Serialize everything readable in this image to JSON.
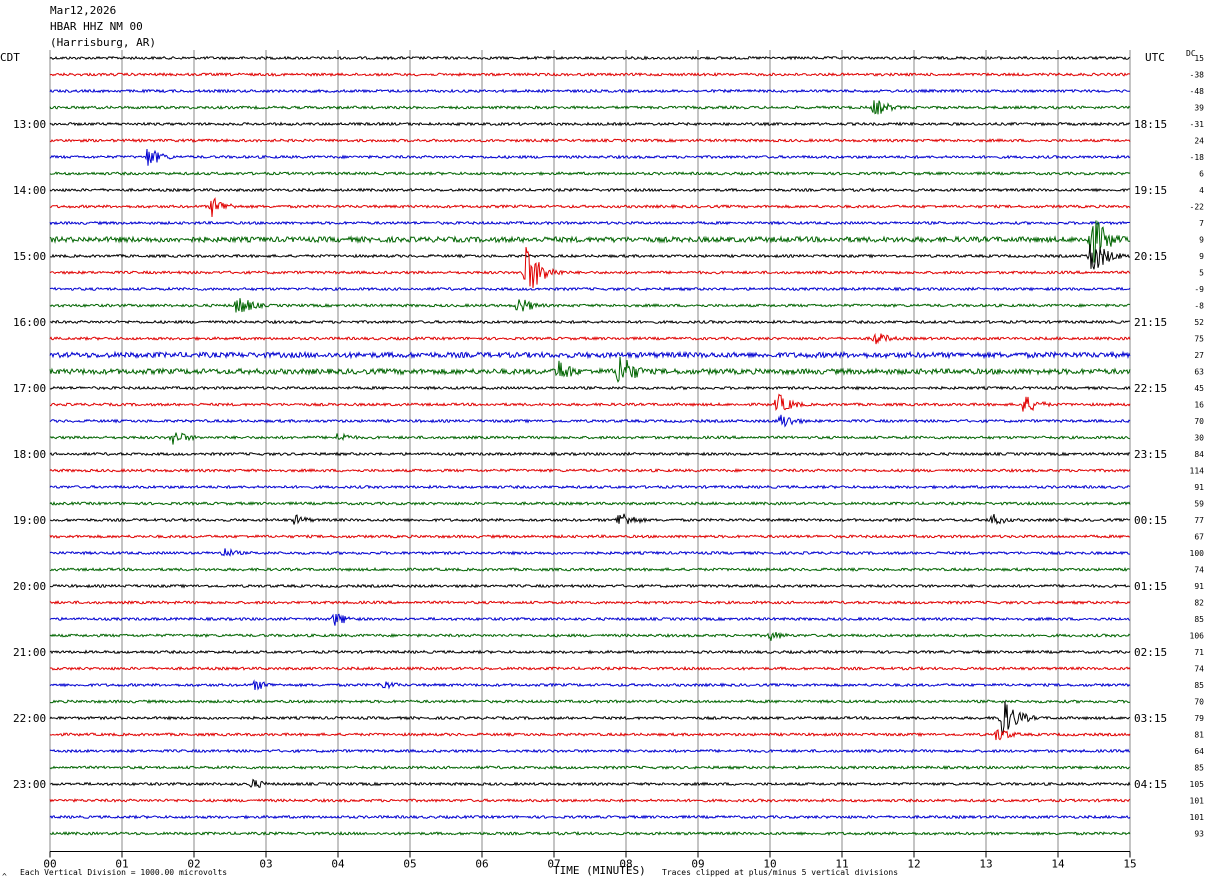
{
  "header": {
    "date": "Mar12,2026",
    "station": "HBAR HHZ NM 00",
    "location": "(Harrisburg, AR)",
    "left_tz": "CDT",
    "right_tz": "UTC",
    "dc_label": "DC"
  },
  "footer": {
    "scale_note": "Each Vertical Division = 1000.00 microvolts",
    "xlabel": "TIME (MINUTES)",
    "clip_note": "Traces clipped at plus/minus 5 vertical divisions",
    "corner_mark": "^"
  },
  "chart_data": {
    "type": "line",
    "title": "HBAR HHZ NM 00",
    "xlabel": "TIME (MINUTES)",
    "xlim": [
      0,
      15
    ],
    "x_ticks": [
      "00",
      "01",
      "02",
      "03",
      "04",
      "05",
      "06",
      "07",
      "08",
      "09",
      "10",
      "11",
      "12",
      "13",
      "14",
      "15"
    ],
    "trace_colors": [
      "#000000",
      "#e00000",
      "#0000d0",
      "#006400"
    ],
    "left_labels": [
      {
        "row": 4,
        "text": "13:00"
      },
      {
        "row": 8,
        "text": "14:00"
      },
      {
        "row": 12,
        "text": "15:00"
      },
      {
        "row": 16,
        "text": "16:00"
      },
      {
        "row": 20,
        "text": "17:00"
      },
      {
        "row": 24,
        "text": "18:00"
      },
      {
        "row": 28,
        "text": "19:00"
      },
      {
        "row": 32,
        "text": "20:00"
      },
      {
        "row": 36,
        "text": "21:00"
      },
      {
        "row": 40,
        "text": "22:00"
      },
      {
        "row": 44,
        "text": "23:00"
      }
    ],
    "right_labels": [
      {
        "row": 4,
        "text": "18:15"
      },
      {
        "row": 8,
        "text": "19:15"
      },
      {
        "row": 12,
        "text": "20:15"
      },
      {
        "row": 16,
        "text": "21:15"
      },
      {
        "row": 20,
        "text": "22:15"
      },
      {
        "row": 24,
        "text": "23:15"
      },
      {
        "row": 28,
        "text": "00:15"
      },
      {
        "row": 32,
        "text": "01:15"
      },
      {
        "row": 36,
        "text": "02:15"
      },
      {
        "row": 40,
        "text": "03:15"
      },
      {
        "row": 44,
        "text": "04:15"
      }
    ],
    "dc_offsets": [
      "15",
      "-38",
      "-48",
      "39",
      "-31",
      "24",
      "-18",
      "6",
      "4",
      "-22",
      "7",
      "9",
      "9",
      "5",
      "-9",
      "-8",
      "52",
      "75",
      "27",
      "63",
      "45",
      "16",
      "70",
      "30",
      "84",
      "114",
      "91",
      "59",
      "77",
      "67",
      "100",
      "74",
      "91",
      "82",
      "85",
      "106",
      "71",
      "74",
      "85",
      "70",
      "79",
      "81",
      "64",
      "85",
      "105",
      "101",
      "101",
      "93"
    ],
    "events": [
      {
        "row": 3,
        "minute": 11.45,
        "amp": 10
      },
      {
        "row": 6,
        "minute": 1.35,
        "amp": 11
      },
      {
        "row": 9,
        "minute": 2.25,
        "amp": 11
      },
      {
        "row": 11,
        "minute": 14.45,
        "amp": 30
      },
      {
        "row": 12,
        "minute": 14.45,
        "amp": 22
      },
      {
        "row": 13,
        "minute": 6.6,
        "amp": 30
      },
      {
        "row": 15,
        "minute": 2.6,
        "amp": 12
      },
      {
        "row": 15,
        "minute": 6.5,
        "amp": 10
      },
      {
        "row": 17,
        "minute": 11.45,
        "amp": 8
      },
      {
        "row": 19,
        "minute": 7.05,
        "amp": 14
      },
      {
        "row": 19,
        "minute": 7.9,
        "amp": 22
      },
      {
        "row": 21,
        "minute": 10.1,
        "amp": 12
      },
      {
        "row": 21,
        "minute": 13.5,
        "amp": 12
      },
      {
        "row": 22,
        "minute": 10.15,
        "amp": 9
      },
      {
        "row": 23,
        "minute": 1.7,
        "amp": 9
      },
      {
        "row": 23,
        "minute": 4.0,
        "amp": 6
      },
      {
        "row": 28,
        "minute": 7.9,
        "amp": 11
      },
      {
        "row": 28,
        "minute": 13.05,
        "amp": 8
      },
      {
        "row": 28,
        "minute": 3.4,
        "amp": 6
      },
      {
        "row": 30,
        "minute": 2.4,
        "amp": 6
      },
      {
        "row": 34,
        "minute": 3.95,
        "amp": 8
      },
      {
        "row": 35,
        "minute": 10.0,
        "amp": 6
      },
      {
        "row": 38,
        "minute": 2.85,
        "amp": 6
      },
      {
        "row": 38,
        "minute": 4.6,
        "amp": 6
      },
      {
        "row": 40,
        "minute": 13.2,
        "amp": 24
      },
      {
        "row": 41,
        "minute": 13.15,
        "amp": 8
      },
      {
        "row": 44,
        "minute": 2.8,
        "amp": 6
      }
    ],
    "noisy_rows": [
      11,
      18,
      19
    ]
  }
}
